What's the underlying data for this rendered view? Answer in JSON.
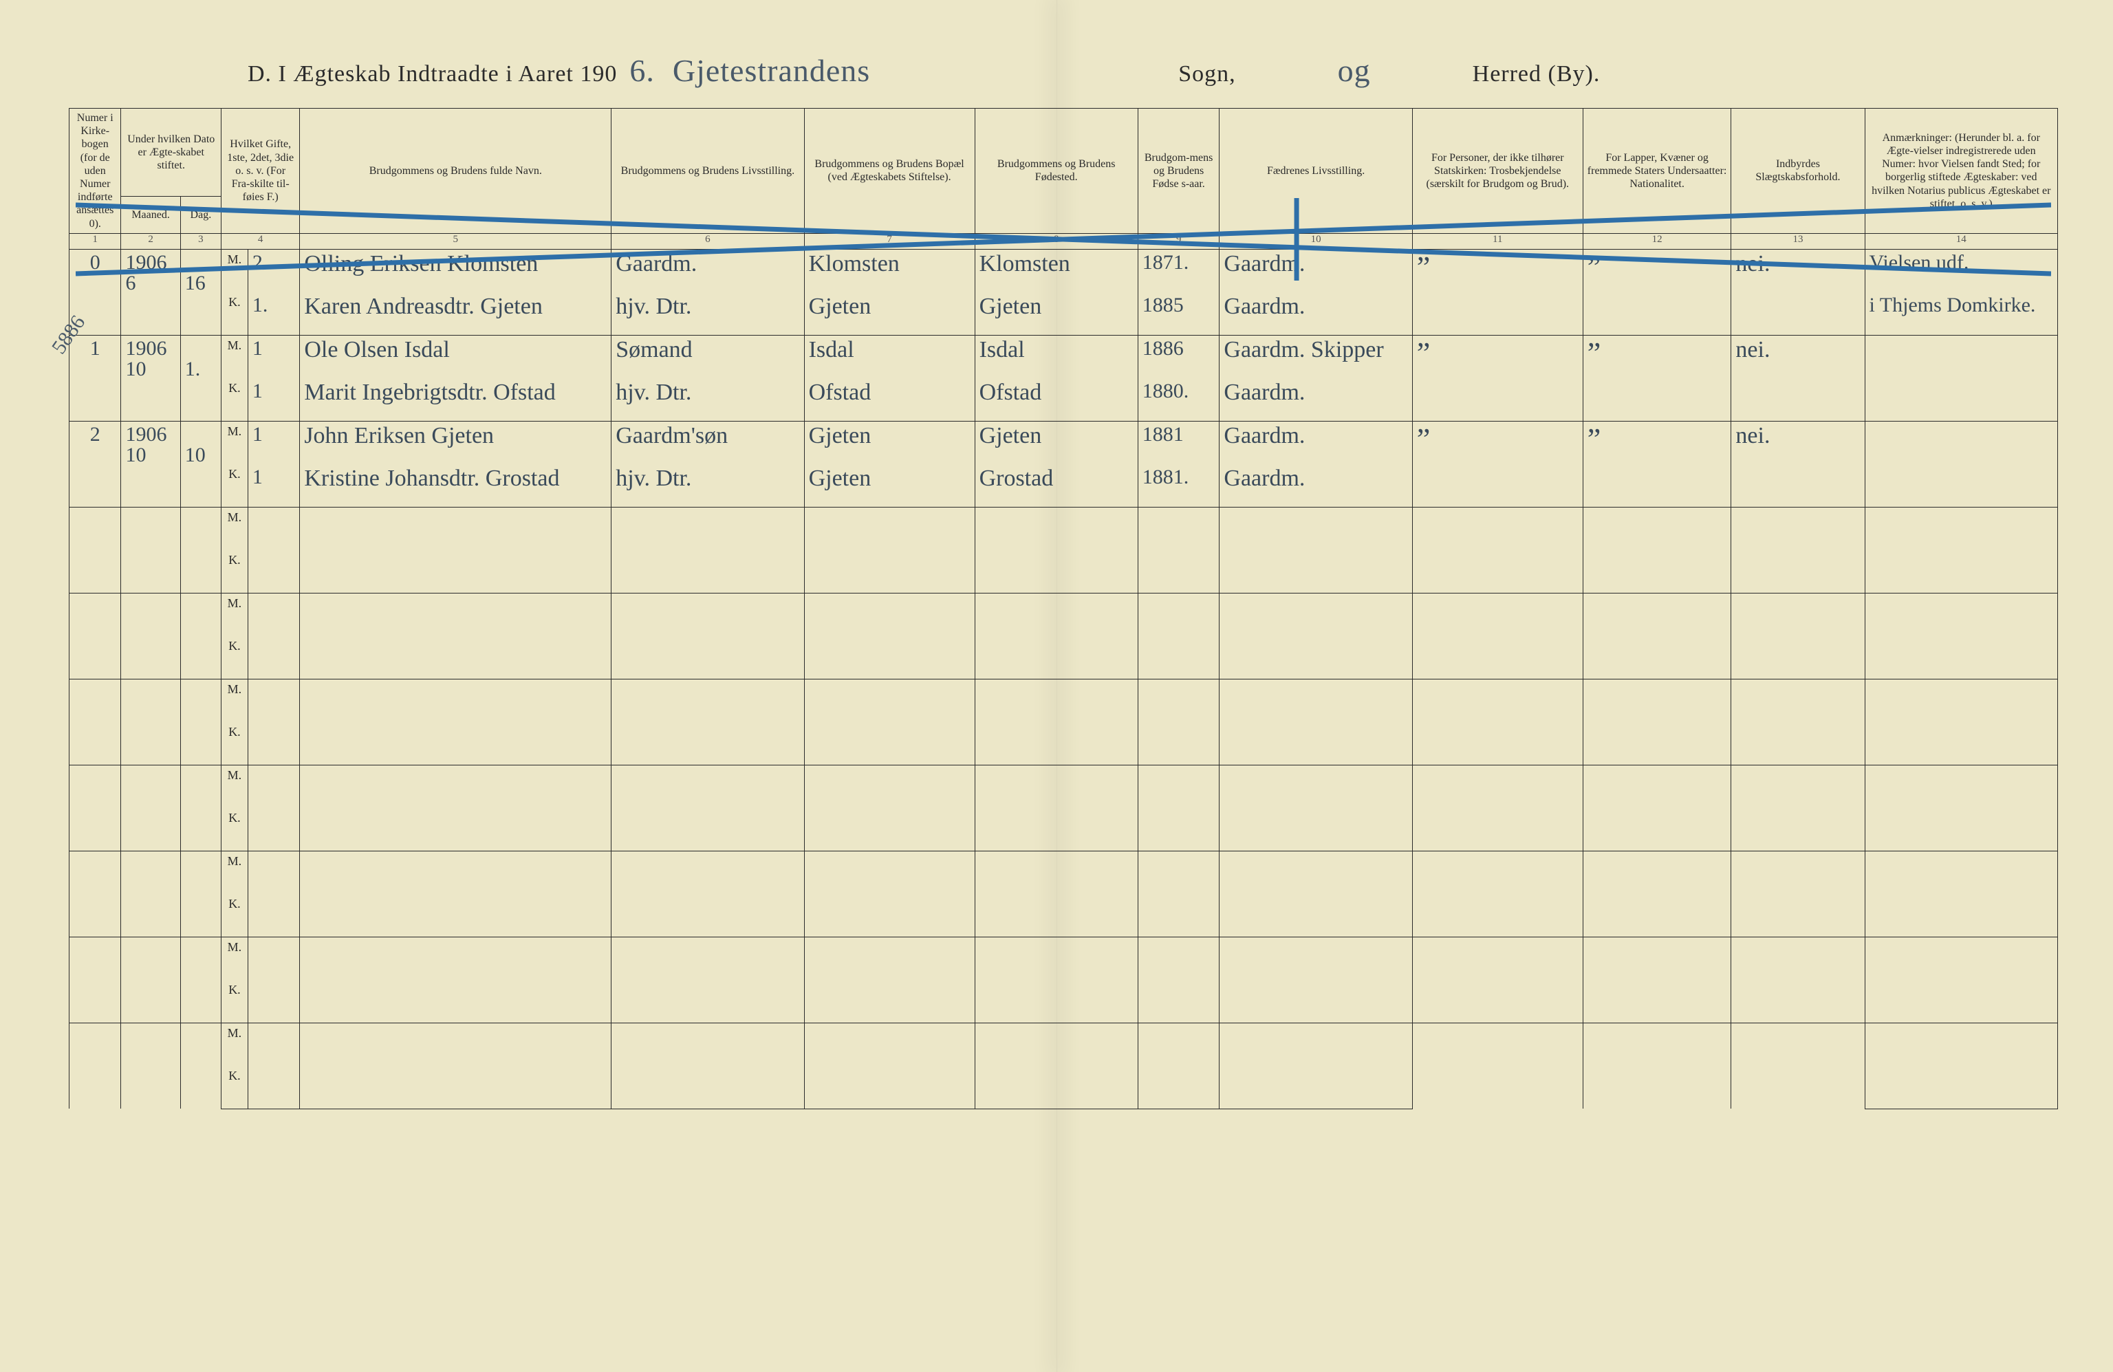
{
  "title": {
    "prefix": "D.  I Ægteskab Indtraadte i Aaret 190",
    "year_suffix": "6.",
    "parish": "Gjetestrandens",
    "sogn_label": "Sogn,",
    "og": "og",
    "herred_label": "Herred (By)."
  },
  "side_note": "5886",
  "columns": {
    "c1": "Numer i Kirke-bogen (for de uden Numer indførte ansættes 0).",
    "c2": "Under hvilken Dato er Ægte-skabet stiftet.",
    "c2a": "Maaned.",
    "c2b": "Dag.",
    "c3": "Hvilket Gifte, 1ste, 2det, 3die o. s. v. (For Fra-skilte til-føies F.)",
    "c4": "Brudgommens og Brudens fulde Navn.",
    "c5": "Brudgommens og Brudens Livsstilling.",
    "c6": "Brudgommens og Brudens Bopæl (ved Ægteskabets Stiftelse).",
    "c7": "Brudgommens og Brudens Fødested.",
    "c8": "Brudgom-mens og Brudens Fødse s-aar.",
    "c9": "Fædrenes Livsstilling.",
    "c10": "For Personer, der ikke tilhører Statskirken: Trosbekjendelse (særskilt for Brudgom og Brud).",
    "c11": "For Lapper, Kvæner og fremmede Staters Undersaatter: Nationalitet.",
    "c12": "Indbyrdes Slægtskabsforhold.",
    "c13": "Anmærkninger: (Herunder bl. a. for Ægte-vielser indregistrerede uden Numer: hvor Vielsen fandt Sted; for borgerlig stiftede Ægteskaber: ved hvilken Notarius publicus Ægteskabet er stiftet, o. s. v.)"
  },
  "colnums": [
    "1",
    "2",
    "3",
    "4",
    "5",
    "6",
    "7",
    "8",
    "9",
    "10",
    "11",
    "12",
    "13",
    "14"
  ],
  "mk": {
    "m": "M.",
    "k": "K."
  },
  "rows": [
    {
      "num": "0",
      "year": "1906",
      "month": "6",
      "day": "16",
      "m": {
        "gifte": "2.",
        "name": "Olling Eriksen Klomsten",
        "stilling": "Gaardm.",
        "bopael": "Klomsten",
        "fodested": "Klomsten",
        "aar": "1871."
      },
      "k": {
        "gifte": "1.",
        "name": "Karen Andreasdtr. Gjeten",
        "stilling": "hjv. Dtr.",
        "bopael": "Gjeten",
        "fodested": "Gjeten",
        "aar": "1885"
      },
      "faedre_m": "Gaardm.",
      "faedre_k": "Gaardm.",
      "c10": "”",
      "c11": "”",
      "c12": "nei.",
      "anm_m": "Vielsen udf.",
      "anm_k": "i Thjems Domkirke."
    },
    {
      "num": "1",
      "year": "1906",
      "month": "10",
      "day": "1.",
      "m": {
        "gifte": "1",
        "name": "Ole Olsen Isdal",
        "stilling": "Sømand",
        "bopael": "Isdal",
        "fodested": "Isdal",
        "aar": "1886"
      },
      "k": {
        "gifte": "1",
        "name": "Marit Ingebrigtsdtr. Ofstad",
        "stilling": "hjv. Dtr.",
        "bopael": "Ofstad",
        "fodested": "Ofstad",
        "aar": "1880."
      },
      "faedre_m": "Gaardm. Skipper",
      "faedre_k": "Gaardm.",
      "c10": "”",
      "c11": "”",
      "c12": "nei.",
      "anm_m": "",
      "anm_k": ""
    },
    {
      "num": "2",
      "year": "1906",
      "month": "10",
      "day": "10",
      "m": {
        "gifte": "1",
        "name": "John Eriksen Gjeten",
        "stilling": "Gaardm'søn",
        "bopael": "Gjeten",
        "fodested": "Gjeten",
        "aar": "1881"
      },
      "k": {
        "gifte": "1",
        "name": "Kristine Johansdtr. Grostad",
        "stilling": "hjv. Dtr.",
        "bopael": "Gjeten",
        "fodested": "Grostad",
        "aar": "1881."
      },
      "faedre_m": "Gaardm.",
      "faedre_k": "Gaardm.",
      "c10": "”",
      "c11": "”",
      "c12": "nei.",
      "anm_m": "",
      "anm_k": ""
    }
  ],
  "empty_pairs": 7,
  "strike": {
    "color": "#2e6fa8",
    "width": 7
  }
}
